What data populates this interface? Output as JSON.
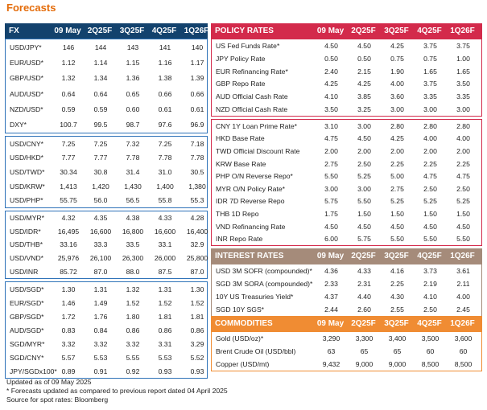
{
  "title": "Forecasts",
  "fx": {
    "header": [
      "FX",
      "09 May",
      "2Q25F",
      "3Q25F",
      "4Q25F",
      "1Q26F"
    ],
    "groups": [
      [
        [
          "USD/JPY*",
          "146",
          "144",
          "143",
          "141",
          "140"
        ],
        [
          "EUR/USD*",
          "1.12",
          "1.14",
          "1.15",
          "1.16",
          "1.17"
        ],
        [
          "GBP/USD*",
          "1.32",
          "1.34",
          "1.36",
          "1.38",
          "1.39"
        ],
        [
          "AUD/USD*",
          "0.64",
          "0.64",
          "0.65",
          "0.66",
          "0.66"
        ],
        [
          "NZD/USD*",
          "0.59",
          "0.59",
          "0.60",
          "0.61",
          "0.61"
        ],
        [
          "DXY*",
          "100.7",
          "99.5",
          "98.7",
          "97.6",
          "96.9"
        ]
      ],
      [
        [
          "USD/CNY*",
          "7.25",
          "7.25",
          "7.32",
          "7.25",
          "7.18"
        ],
        [
          "USD/HKD*",
          "7.77",
          "7.77",
          "7.78",
          "7.78",
          "7.78"
        ],
        [
          "USD/TWD*",
          "30.34",
          "30.8",
          "31.4",
          "31.0",
          "30.5"
        ],
        [
          "USD/KRW*",
          "1,413",
          "1,420",
          "1,430",
          "1,400",
          "1,380"
        ],
        [
          "USD/PHP*",
          "55.75",
          "56.0",
          "56.5",
          "55.8",
          "55.3"
        ]
      ],
      [
        [
          "USD/MYR*",
          "4.32",
          "4.35",
          "4.38",
          "4.33",
          "4.28"
        ],
        [
          "USD/IDR*",
          "16,495",
          "16,600",
          "16,800",
          "16,600",
          "16,400"
        ],
        [
          "USD/THB*",
          "33.16",
          "33.3",
          "33.5",
          "33.1",
          "32.9"
        ],
        [
          "USD/VND*",
          "25,976",
          "26,100",
          "26,300",
          "26,000",
          "25,800"
        ],
        [
          "USD/INR",
          "85.72",
          "87.0",
          "88.0",
          "87.5",
          "87.0"
        ]
      ],
      [
        [
          "USD/SGD*",
          "1.30",
          "1.31",
          "1.32",
          "1.31",
          "1.30"
        ],
        [
          "EUR/SGD*",
          "1.46",
          "1.49",
          "1.52",
          "1.52",
          "1.52"
        ],
        [
          "GBP/SGD*",
          "1.72",
          "1.76",
          "1.80",
          "1.81",
          "1.81"
        ],
        [
          "AUD/SGD*",
          "0.83",
          "0.84",
          "0.86",
          "0.86",
          "0.86"
        ],
        [
          "SGD/MYR*",
          "3.32",
          "3.32",
          "3.32",
          "3.31",
          "3.29"
        ],
        [
          "SGD/CNY*",
          "5.57",
          "5.53",
          "5.55",
          "5.53",
          "5.52"
        ],
        [
          "JPY/SGDx100*",
          "0.89",
          "0.91",
          "0.92",
          "0.93",
          "0.93"
        ]
      ]
    ]
  },
  "policy": {
    "header": [
      "POLICY RATES",
      "09 May",
      "2Q25F",
      "3Q25F",
      "4Q25F",
      "1Q26F"
    ],
    "groups": [
      [
        [
          "US Fed Funds Rate*",
          "4.50",
          "4.50",
          "4.25",
          "3.75",
          "3.75"
        ],
        [
          "JPY Policy Rate",
          "0.50",
          "0.50",
          "0.75",
          "0.75",
          "1.00"
        ],
        [
          "EUR Refinancing Rate*",
          "2.40",
          "2.15",
          "1.90",
          "1.65",
          "1.65"
        ],
        [
          "GBP Repo Rate",
          "4.25",
          "4.25",
          "4.00",
          "3.75",
          "3.50"
        ],
        [
          "AUD Official Cash Rate",
          "4.10",
          "3.85",
          "3.60",
          "3.35",
          "3.35"
        ],
        [
          "NZD Official Cash Rate",
          "3.50",
          "3.25",
          "3.00",
          "3.00",
          "3.00"
        ]
      ],
      [
        [
          "CNY 1Y Loan Prime Rate*",
          "3.10",
          "3.00",
          "2.80",
          "2.80",
          "2.80"
        ],
        [
          "HKD Base Rate",
          "4.75",
          "4.50",
          "4.25",
          "4.00",
          "4.00"
        ],
        [
          "TWD Official Discount Rate",
          "2.00",
          "2.00",
          "2.00",
          "2.00",
          "2.00"
        ],
        [
          "KRW Base Rate",
          "2.75",
          "2.50",
          "2.25",
          "2.25",
          "2.25"
        ],
        [
          "PHP O/N Reverse Repo*",
          "5.50",
          "5.25",
          "5.00",
          "4.75",
          "4.75"
        ],
        [
          "MYR O/N Policy Rate*",
          "3.00",
          "3.00",
          "2.75",
          "2.50",
          "2.50"
        ],
        [
          "IDR 7D Reverse Repo",
          "5.75",
          "5.50",
          "5.25",
          "5.25",
          "5.25"
        ],
        [
          "THB 1D Repo",
          "1.75",
          "1.50",
          "1.50",
          "1.50",
          "1.50"
        ],
        [
          "VND Refinancing Rate",
          "4.50",
          "4.50",
          "4.50",
          "4.50",
          "4.50"
        ],
        [
          "INR Repo Rate",
          "6.00",
          "5.75",
          "5.50",
          "5.50",
          "5.50"
        ]
      ]
    ]
  },
  "interest": {
    "header": [
      "INTEREST RATES",
      "09 May",
      "2Q25F",
      "3Q25F",
      "4Q25F",
      "1Q26F"
    ],
    "rows": [
      [
        "USD 3M SOFR (compounded)*",
        "4.36",
        "4.33",
        "4.16",
        "3.73",
        "3.61"
      ],
      [
        "SGD 3M SORA (compounded)*",
        "2.33",
        "2.31",
        "2.25",
        "2.19",
        "2.11"
      ],
      [
        "10Y US Treasuries Yield*",
        "4.37",
        "4.40",
        "4.30",
        "4.10",
        "4.00"
      ],
      [
        "SGD 10Y SGS*",
        "2.44",
        "2.60",
        "2.55",
        "2.50",
        "2.45"
      ]
    ]
  },
  "commodities": {
    "header": [
      "COMMODITIES",
      "09 May",
      "2Q25F",
      "3Q25F",
      "4Q25F",
      "1Q26F"
    ],
    "rows": [
      [
        "Gold (USD/oz)*",
        "3,290",
        "3,300",
        "3,400",
        "3,500",
        "3,600"
      ],
      [
        "Brent Crude Oil (USD/bbl)",
        "63",
        "65",
        "65",
        "60",
        "60"
      ],
      [
        "Copper (USD/mt)",
        "9,432",
        "9,000",
        "9,000",
        "8,500",
        "8,500"
      ]
    ]
  },
  "footnotes": [
    "Updated as of 09 May 2025",
    "* Forecasts updated as compared to previous report dated 04 April 2025",
    "Source for spot rates: Bloomberg"
  ],
  "colors": {
    "title": "#e46c0a",
    "fx_header": "#13426d",
    "fx_border": "#2e72b8",
    "policy_header": "#d32a4b",
    "interest_header": "#a58b7a",
    "commodities_header": "#f08c33"
  }
}
